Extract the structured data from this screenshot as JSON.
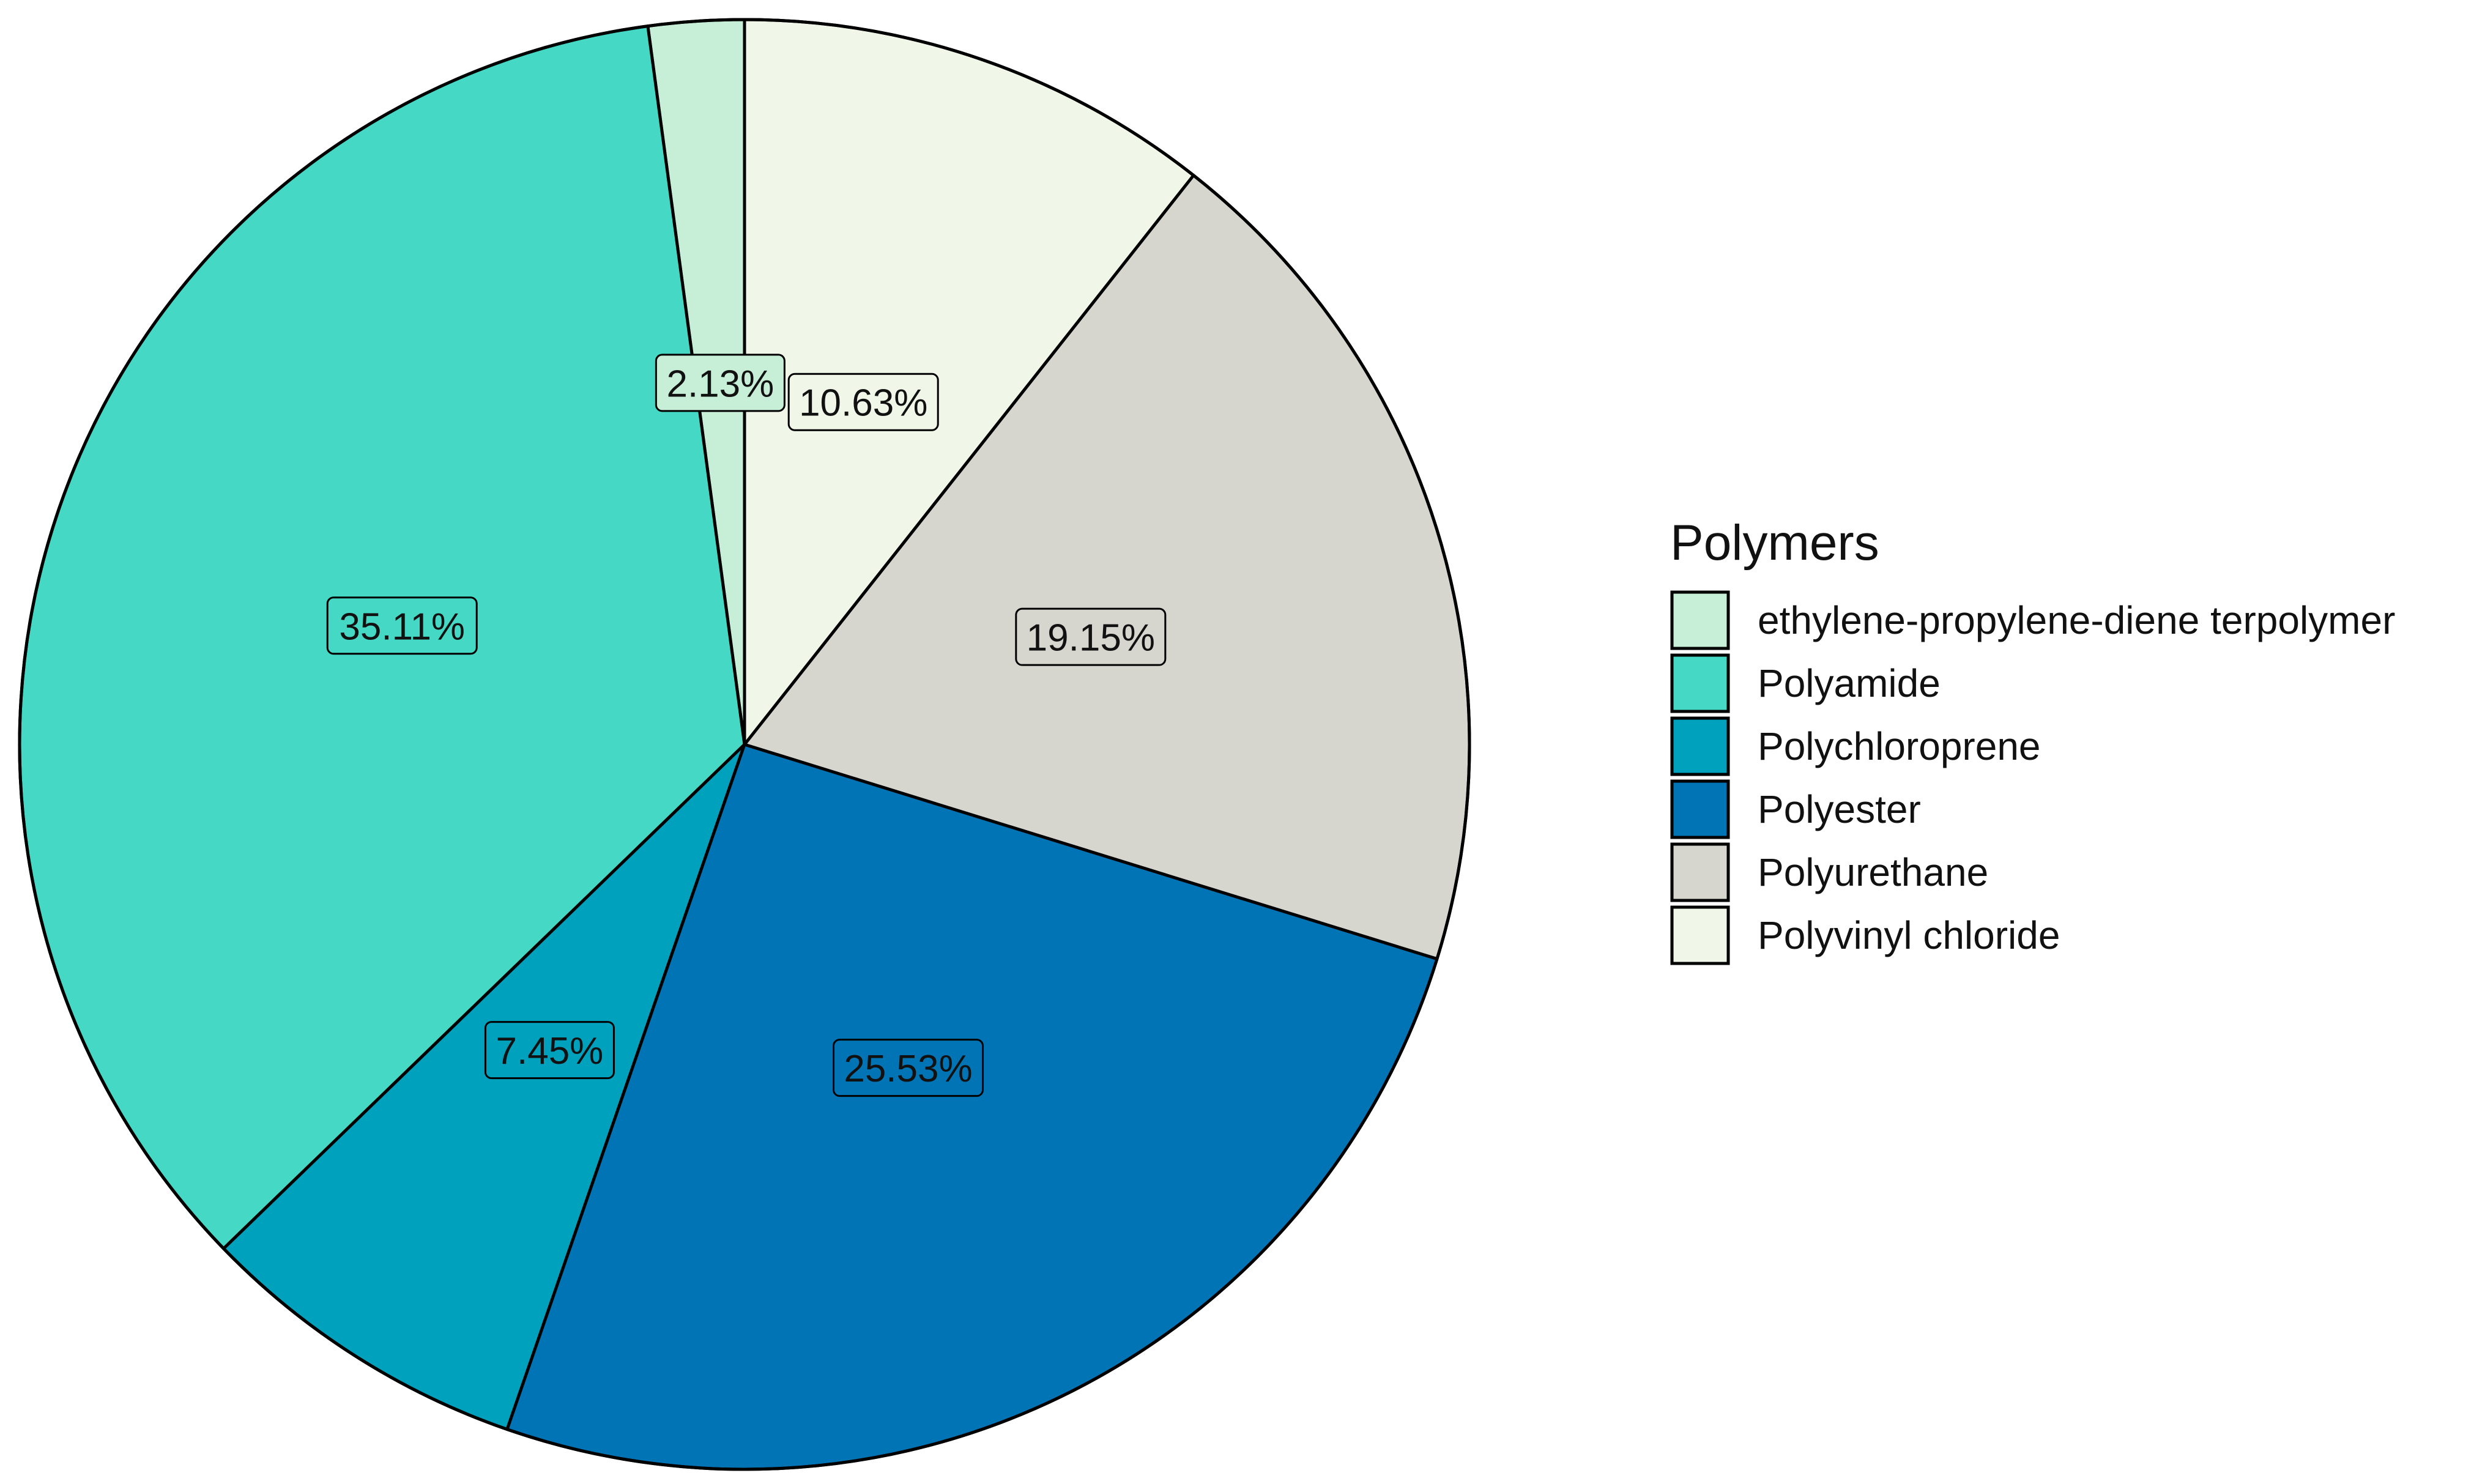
{
  "chart_data": {
    "type": "pie",
    "legend_title": "Polymers",
    "legend_position": "right",
    "start": "12 o'clock",
    "direction": "counter-clockwise",
    "slices": [
      {
        "name": "ethylene-propylene-diene terpolymer",
        "value": 2.13,
        "label": "2.13%",
        "color": "#C7EED6"
      },
      {
        "name": "Polyamide",
        "value": 35.11,
        "label": "35.11%",
        "color": "#45D9C5"
      },
      {
        "name": "Polychloroprene",
        "value": 7.45,
        "label": "7.45%",
        "color": "#00A1BC"
      },
      {
        "name": "Polyester",
        "value": 25.53,
        "label": "25.53%",
        "color": "#0074B4"
      },
      {
        "name": "Polyurethane",
        "value": 19.15,
        "label": "19.15%",
        "color": "#D6D6CF"
      },
      {
        "name": "Polyvinyl chloride",
        "value": 10.63,
        "label": "10.63%",
        "color": "#F0F7E8"
      }
    ]
  }
}
